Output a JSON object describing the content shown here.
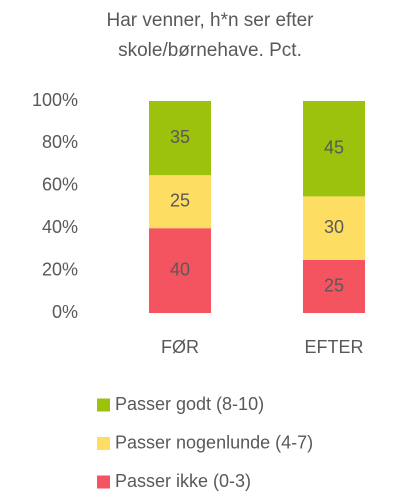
{
  "chart_data": {
    "type": "stacked_bar",
    "title": "Har venner, h*n ser efter skole/børnehave. Pct.",
    "categories": [
      "FØR",
      "EFTER"
    ],
    "series": [
      {
        "name": "Passer ikke (0-3)",
        "color": "#f4545f",
        "values": [
          40,
          25
        ]
      },
      {
        "name": "Passer nogenlunde (4-7)",
        "color": "#fddd62",
        "values": [
          25,
          30
        ]
      },
      {
        "name": "Passer godt (8-10)",
        "color": "#9dc20e",
        "values": [
          35,
          45
        ]
      }
    ],
    "ylim": [
      0,
      100
    ],
    "yticks": [
      {
        "value": 0,
        "label": "0%"
      },
      {
        "value": 20,
        "label": "20%"
      },
      {
        "value": 40,
        "label": "40%"
      },
      {
        "value": 60,
        "label": "60%"
      },
      {
        "value": 80,
        "label": "80%"
      },
      {
        "value": 100,
        "label": "100%"
      }
    ],
    "grid": false,
    "legend": "bottom"
  }
}
